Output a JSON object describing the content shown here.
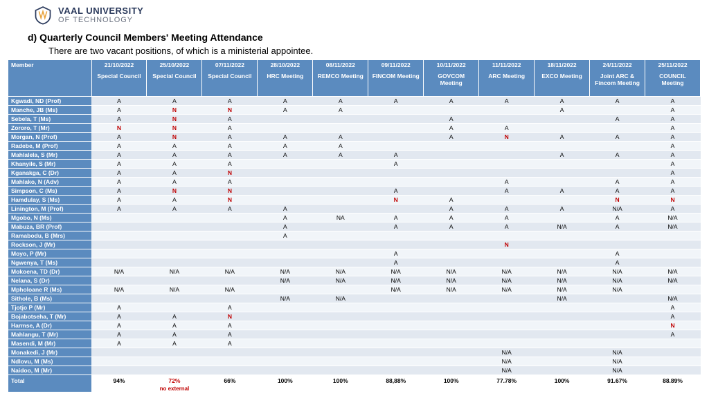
{
  "logo": {
    "top": "VAAL UNIVERSITY",
    "bottom": "OF TECHNOLOGY"
  },
  "section": "d)  Quarterly Council Members' Meeting Attendance",
  "subtitle": "There are two vacant positions, of which is a ministerial appointee.",
  "columns": [
    {
      "label": "Member"
    },
    {
      "date": "21/10/2022",
      "label": "Special Council"
    },
    {
      "date": "25/10/2022",
      "label": "Special Council"
    },
    {
      "date": "07/11/2022",
      "label": "Special Council"
    },
    {
      "date": "28/10/2022",
      "label": "HRC Meeting"
    },
    {
      "date": "08/11/2022",
      "label": "REMCO Meeting"
    },
    {
      "date": "09/11/2022",
      "label": "FINCOM Meeting"
    },
    {
      "date": "10/11/2022",
      "label": "GOVCOM Meeting"
    },
    {
      "date": "11/11/2022",
      "label": "ARC Meeting"
    },
    {
      "date": "18/11/2022",
      "label": "EXCO Meeting"
    },
    {
      "date": "24/11/2022",
      "label": "Joint ARC & Fincom Meeting"
    },
    {
      "date": "25/11/2022",
      "label": "COUNCIL Meeting"
    }
  ],
  "rows": [
    {
      "name": "Kgwadi, ND (Prof)",
      "cells": [
        "A",
        "A",
        "A",
        "A",
        "A",
        "A",
        "A",
        "A",
        "A",
        "A",
        "A"
      ]
    },
    {
      "name": "Manche, JB (Ms)",
      "cells": [
        "A",
        "N",
        "N",
        "A",
        "A",
        "",
        "",
        "",
        "A",
        "",
        "A"
      ]
    },
    {
      "name": "Sebela, T (Ms)",
      "cells": [
        "A",
        "N",
        "A",
        "",
        "",
        "",
        "A",
        "",
        "",
        "A",
        "A"
      ]
    },
    {
      "name": "Zororo, T (Mr)",
      "cells": [
        "N",
        "N",
        "A",
        "",
        "",
        "",
        "A",
        "A",
        "",
        "",
        "A"
      ]
    },
    {
      "name": "Morgan, N (Prof)",
      "cells": [
        "A",
        "N",
        "A",
        "A",
        "A",
        "",
        "A",
        "N",
        "A",
        "A",
        "A"
      ]
    },
    {
      "name": "Radebe, M (Prof)",
      "cells": [
        "A",
        "A",
        "A",
        "A",
        "A",
        "",
        "",
        "",
        "",
        "",
        "A"
      ]
    },
    {
      "name": "Mahlalela, S (Mr)",
      "cells": [
        "A",
        "A",
        "A",
        "A",
        "A",
        "A",
        "",
        "",
        "A",
        "A",
        "A"
      ]
    },
    {
      "name": "Khanyile, S (Mr)",
      "cells": [
        "A",
        "A",
        "A",
        "",
        "",
        "A",
        "",
        "",
        "",
        "",
        "A"
      ]
    },
    {
      "name": "Kganakga, C (Dr)",
      "cells": [
        "A",
        "A",
        "N",
        "",
        "",
        "",
        "",
        "",
        "",
        "",
        "A"
      ]
    },
    {
      "name": "Mahlako, N (Adv)",
      "cells": [
        "A",
        "A",
        "A",
        "",
        "",
        "",
        "",
        "A",
        "",
        "A",
        "A"
      ]
    },
    {
      "name": "Simpson, C (Ms)",
      "cells": [
        "A",
        "N",
        "N",
        "",
        "",
        "A",
        "",
        "A",
        "A",
        "A",
        "A"
      ]
    },
    {
      "name": "Hamdulay, S (Ms)",
      "cells": [
        "A",
        "A",
        "N",
        "",
        "",
        "N",
        "A",
        "",
        "",
        "N",
        "N"
      ]
    },
    {
      "name": "Linington, M (Prof)",
      "cells": [
        "A",
        "A",
        "A",
        "A",
        "",
        "",
        "A",
        "A",
        "A",
        "N/A",
        "A"
      ]
    },
    {
      "name": "Mgobo, N (Ms)",
      "cells": [
        "",
        "",
        "",
        "A",
        "NA",
        "A",
        "A",
        "A",
        "",
        "A",
        "N/A"
      ]
    },
    {
      "name": "Mabuza, BR (Prof)",
      "cells": [
        "",
        "",
        "",
        "A",
        "",
        "A",
        "A",
        "A",
        "N/A",
        "A",
        "N/A"
      ]
    },
    {
      "name": "Ramabodu, B (Mrs)",
      "cells": [
        "",
        "",
        "",
        "A",
        "",
        "",
        "",
        "",
        "",
        "",
        ""
      ]
    },
    {
      "name": "Rockson, J (Mr)",
      "cells": [
        "",
        "",
        "",
        "",
        "",
        "",
        "",
        "N",
        "",
        "",
        ""
      ]
    },
    {
      "name": "Moyo, P (Mr)",
      "cells": [
        "",
        "",
        "",
        "",
        "",
        "A",
        "",
        "",
        "",
        "A",
        ""
      ]
    },
    {
      "name": "Ngwenya, T (Ms)",
      "cells": [
        "",
        "",
        "",
        "",
        "",
        "A",
        "",
        "",
        "",
        "A",
        ""
      ]
    },
    {
      "name": "Mokoena, TD (Dr)",
      "cells": [
        "N/A",
        "N/A",
        "N/A",
        "N/A",
        "N/A",
        "N/A",
        "N/A",
        "N/A",
        "N/A",
        "N/A",
        "N/A"
      ]
    },
    {
      "name": "Nelana, S (Dr)",
      "cells": [
        "",
        "",
        "",
        "N/A",
        "N/A",
        "N/A",
        "N/A",
        "N/A",
        "N/A",
        "N/A",
        "N/A"
      ]
    },
    {
      "name": "Mpholoane R (Ms)",
      "cells": [
        "N/A",
        "N/A",
        "N/A",
        "",
        "",
        "N/A",
        "N/A",
        "N/A",
        "N/A",
        "N/A",
        ""
      ]
    },
    {
      "name": "Sithole, B (Ms)",
      "cells": [
        "",
        "",
        "",
        "N/A",
        "N/A",
        "",
        "",
        "",
        "N/A",
        "",
        "N/A"
      ]
    },
    {
      "name": "Tjotjo P (Mr)",
      "cells": [
        "A",
        "",
        "A",
        "",
        "",
        "",
        "",
        "",
        "",
        "",
        "A"
      ]
    },
    {
      "name": "Bojabotseha, T (Mr)",
      "cells": [
        "A",
        "A",
        "N",
        "",
        "",
        "",
        "",
        "",
        "",
        "",
        "A"
      ]
    },
    {
      "name": "Harmse, A (Dr)",
      "cells": [
        "A",
        "A",
        "A",
        "",
        "",
        "",
        "",
        "",
        "",
        "",
        "N"
      ]
    },
    {
      "name": "Mahlangu, T (Mr)",
      "cells": [
        "A",
        "A",
        "A",
        "",
        "",
        "",
        "",
        "",
        "",
        "",
        "A"
      ]
    },
    {
      "name": "Masendi, M (Mr)",
      "cells": [
        "A",
        "A",
        "A",
        "",
        "",
        "",
        "",
        "",
        "",
        "",
        ""
      ]
    },
    {
      "name": "Monakedi, J (Mr)",
      "cells": [
        "",
        "",
        "",
        "",
        "",
        "",
        "",
        "N/A",
        "",
        "N/A",
        ""
      ]
    },
    {
      "name": "Ndlovu, M (Ms)",
      "cells": [
        "",
        "",
        "",
        "",
        "",
        "",
        "",
        "N/A",
        "",
        "N/A",
        ""
      ]
    },
    {
      "name": "Naidoo, M (Mr)",
      "cells": [
        "",
        "",
        "",
        "",
        "",
        "",
        "",
        "N/A",
        "",
        "N/A",
        ""
      ]
    }
  ],
  "totals": {
    "name": "Total",
    "cells": [
      "94%",
      "72%",
      "66%",
      "100%",
      "100%",
      "88,88%",
      "100%",
      "77.78%",
      "100%",
      "91.67%",
      "88.89%"
    ],
    "note_col2": "no external"
  },
  "colors": {
    "header_bg": "#5b8bbf",
    "row_odd": "#e2e8f0",
    "row_even": "#f1f5f9",
    "n_color": "#c00000"
  }
}
